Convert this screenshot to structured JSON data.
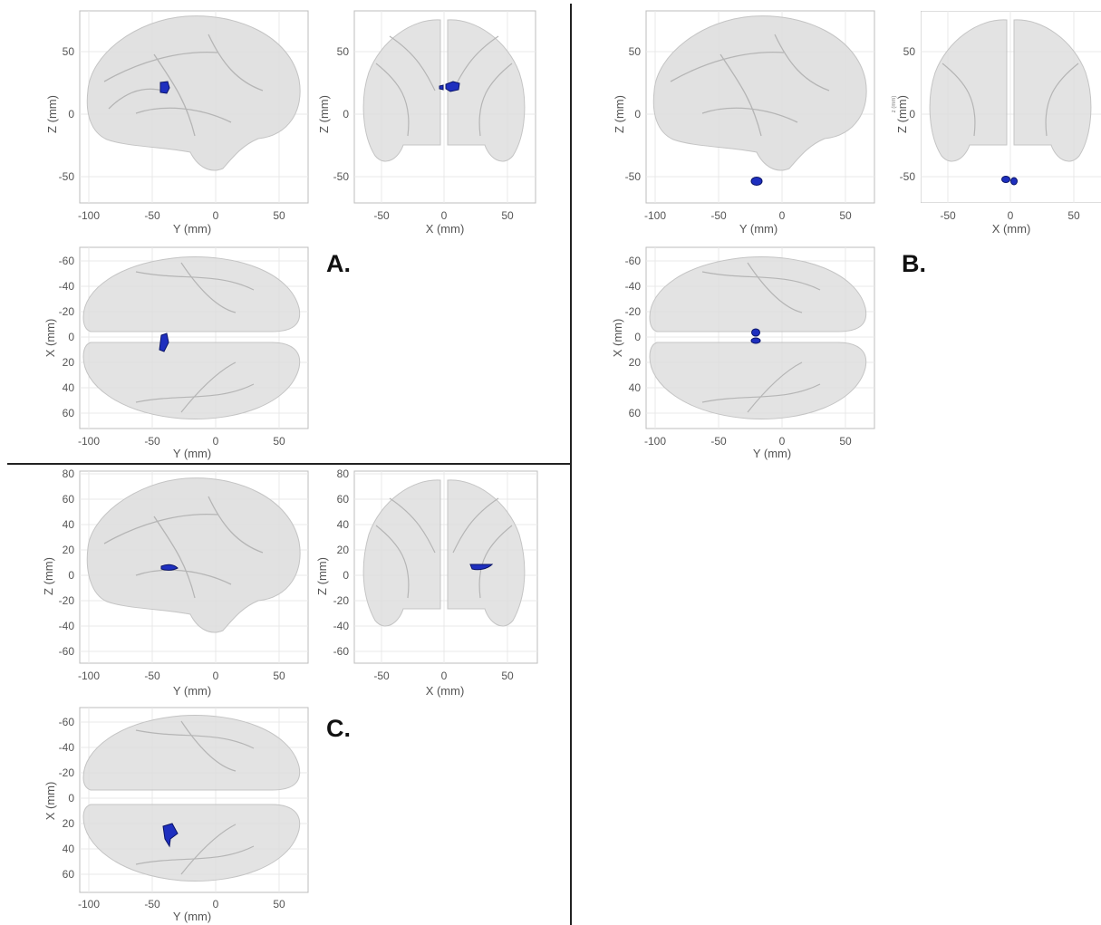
{
  "figure": {
    "panels": [
      {
        "label": "A.",
        "views": {
          "sagittal": {
            "x_label": "Y (mm)",
            "y_label": "Z (mm)",
            "x_ticks": [
              "-100",
              "-50",
              "0",
              "50"
            ],
            "y_ticks": [
              "50",
              "0",
              "-50"
            ]
          },
          "coronal": {
            "x_label": "X (mm)",
            "y_label": "Z (mm)",
            "x_ticks": [
              "-50",
              "0",
              "50"
            ],
            "y_ticks": [
              "50",
              "0",
              "-50"
            ]
          },
          "axial": {
            "x_label": "Y (mm)",
            "y_label": "X (mm)",
            "x_ticks": [
              "-100",
              "-50",
              "0",
              "50"
            ],
            "y_ticks": [
              "-60",
              "-40",
              "-20",
              "0",
              "20",
              "40",
              "60"
            ]
          }
        }
      },
      {
        "label": "B.",
        "views": {
          "sagittal": {
            "x_label": "Y (mm)",
            "y_label": "Z (mm)",
            "x_ticks": [
              "-100",
              "-50",
              "0",
              "50"
            ],
            "y_ticks": [
              "50",
              "0",
              "-50"
            ]
          },
          "coronal": {
            "x_label": "X (mm)",
            "y_label": "Z (mm)",
            "extra_label": "z (mm)",
            "x_ticks": [
              "-50",
              "0",
              "50"
            ],
            "y_ticks": [
              "50",
              "0",
              "-50"
            ]
          },
          "axial": {
            "x_label": "Y (mm)",
            "y_label": "X (mm)",
            "x_ticks": [
              "-100",
              "-50",
              "0",
              "50"
            ],
            "y_ticks": [
              "-60",
              "-40",
              "-20",
              "0",
              "20",
              "40",
              "60"
            ]
          }
        }
      },
      {
        "label": "C.",
        "views": {
          "sagittal": {
            "x_label": "Y (mm)",
            "y_label": "Z (mm)",
            "x_ticks": [
              "-100",
              "-50",
              "0",
              "50"
            ],
            "y_ticks": [
              "80",
              "60",
              "40",
              "20",
              "0",
              "-20",
              "-40",
              "-60"
            ]
          },
          "coronal": {
            "x_label": "X (mm)",
            "y_label": "Z (mm)",
            "x_ticks": [
              "-50",
              "0",
              "50"
            ],
            "y_ticks": [
              "80",
              "60",
              "40",
              "20",
              "0",
              "-20",
              "-40",
              "-60"
            ]
          },
          "axial": {
            "x_label": "Y (mm)",
            "y_label": "X (mm)",
            "x_ticks": [
              "-100",
              "-50",
              "0",
              "50"
            ],
            "y_ticks": [
              "-60",
              "-40",
              "-20",
              "0",
              "20",
              "40",
              "60"
            ]
          }
        }
      }
    ],
    "colors": {
      "brain": "#dcdcdc",
      "brain_fold": "#b5b5b5",
      "cluster": "#1e2fbf",
      "cluster_edge": "#0a1468",
      "frame": "#bdbdbd",
      "grid": "#e8e8e8",
      "divider": "#222222"
    }
  }
}
